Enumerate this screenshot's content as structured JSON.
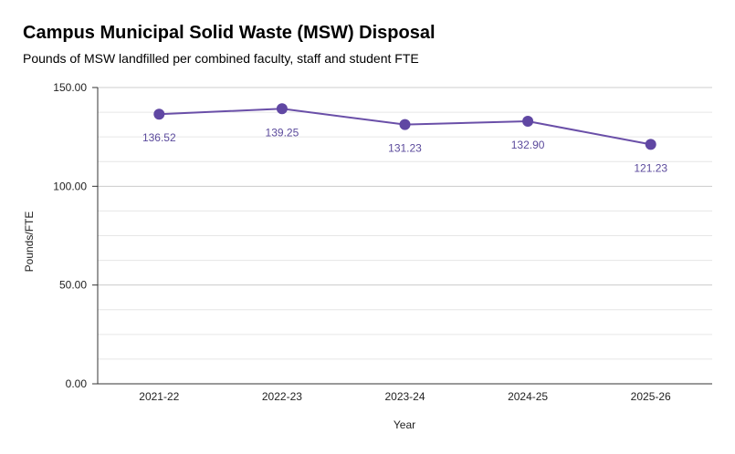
{
  "chart_data": {
    "type": "line",
    "title": "Campus Municipal Solid Waste (MSW) Disposal",
    "subtitle": "Pounds of MSW landfilled per combined faculty, staff and student FTE",
    "xlabel": "Year",
    "ylabel": "Pounds/FTE",
    "categories": [
      "2021-22",
      "2022-23",
      "2023-24",
      "2024-25",
      "2025-26"
    ],
    "series": [
      {
        "values": [
          136.52,
          139.25,
          131.23,
          132.9,
          121.23
        ],
        "labels": [
          "136.52",
          "139.25",
          "131.23",
          "132.90",
          "121.23"
        ]
      }
    ],
    "ylim": [
      0,
      150
    ],
    "yticks": [
      0,
      50,
      100,
      150
    ],
    "ytick_labels": [
      "0.00",
      "50.00",
      "100.00",
      "150.00"
    ],
    "minor_gridlines_per_major": 3,
    "grid": true,
    "legend": "none",
    "colors": {
      "line": "#6a4fa8",
      "marker": "#6047a3",
      "label": "#5b4a9c",
      "major_grid": "#cccccc",
      "minor_grid": "#e6e6e6",
      "axis": "#333333"
    }
  }
}
